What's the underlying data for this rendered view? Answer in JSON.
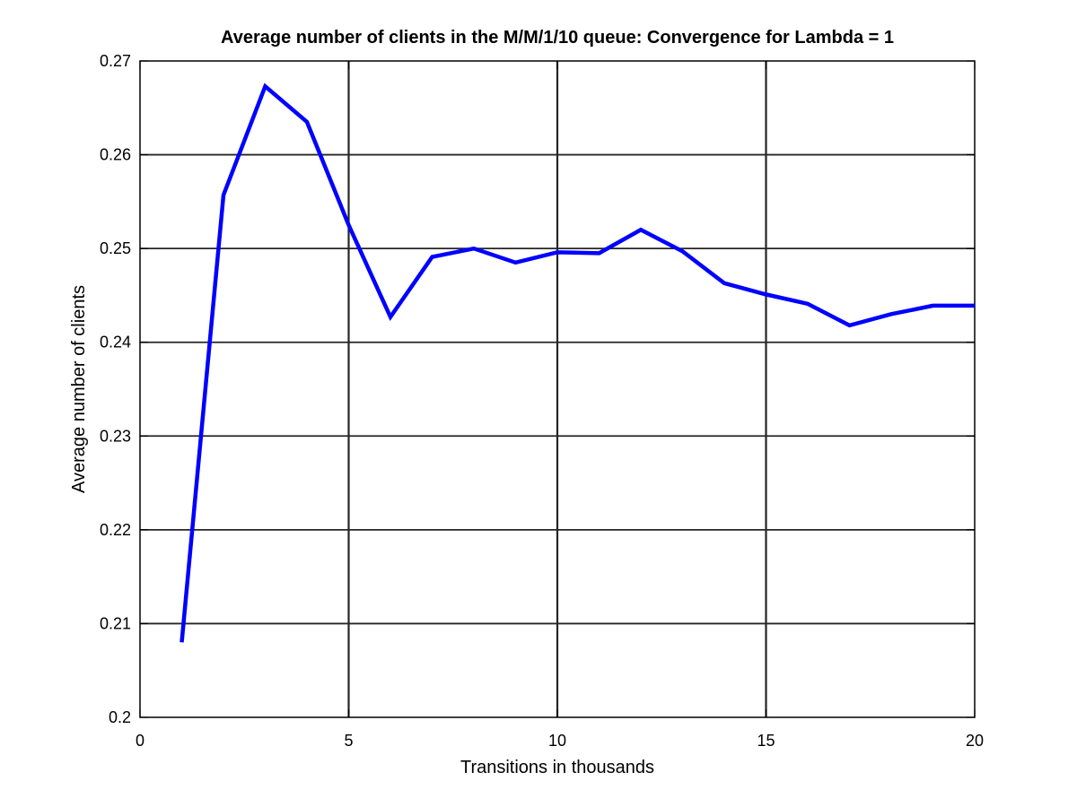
{
  "chart_data": {
    "type": "line",
    "title": "Average number of clients in the M/M/1/10 queue: Convergence for Lambda = 1",
    "xlabel": "Transitions in thousands",
    "ylabel": "Average number of clients",
    "xlim": [
      0,
      20
    ],
    "ylim": [
      0.2,
      0.27
    ],
    "xticks": [
      0,
      5,
      10,
      15,
      20
    ],
    "yticks": [
      0.2,
      0.21,
      0.22,
      0.23,
      0.24,
      0.25,
      0.26,
      0.27
    ],
    "xtick_labels": [
      "0",
      "5",
      "10",
      "15",
      "20"
    ],
    "ytick_labels": [
      "0.2",
      "0.21",
      "0.22",
      "0.23",
      "0.24",
      "0.25",
      "0.26",
      "0.27"
    ],
    "grid": true,
    "series": [
      {
        "color": "#0000ff",
        "x": [
          1,
          2,
          3,
          4,
          5,
          6,
          7,
          8,
          9,
          10,
          11,
          12,
          13,
          14,
          15,
          16,
          17,
          18,
          19,
          20
        ],
        "y": [
          0.208,
          0.2557,
          0.2673,
          0.2635,
          0.2525,
          0.2427,
          0.2491,
          0.25,
          0.2485,
          0.2496,
          0.2495,
          0.252,
          0.2497,
          0.2463,
          0.2451,
          0.2441,
          0.2418,
          0.243,
          0.2439,
          0.2439
        ]
      }
    ]
  }
}
